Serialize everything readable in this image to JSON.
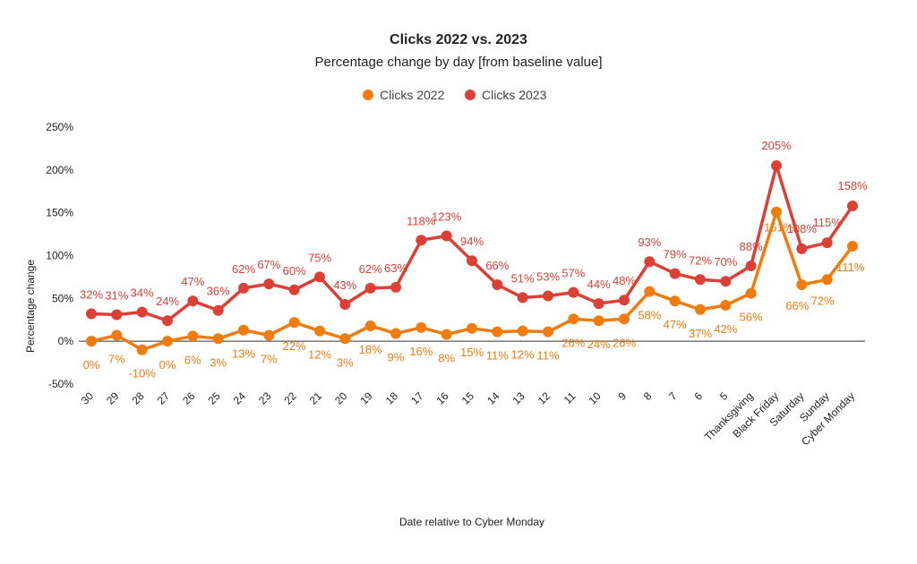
{
  "chart_data": {
    "type": "line",
    "title": "Clicks 2022 vs. 2023",
    "subtitle": "Percentage change by day [from baseline value]",
    "xlabel": "Date relative to Cyber Monday",
    "ylabel": "Percentage change",
    "ylim": [
      -50,
      250
    ],
    "yticks": [
      -50,
      0,
      50,
      100,
      150,
      200,
      250
    ],
    "ytick_labels": [
      "-50%",
      "0%",
      "50%",
      "100%",
      "150%",
      "200%",
      "250%"
    ],
    "legend_position": "top-center",
    "categories": [
      "30",
      "29",
      "28",
      "27",
      "26",
      "25",
      "24",
      "23",
      "22",
      "21",
      "20",
      "19",
      "18",
      "17",
      "16",
      "15",
      "14",
      "13",
      "12",
      "11",
      "10",
      "9",
      "8",
      "7",
      "6",
      "5",
      "Thanksgiving",
      "Black Friday",
      "Saturday",
      "Sunday",
      "Cyber Monday"
    ],
    "series": [
      {
        "name": "Clicks 2022",
        "color": "#f07c0f",
        "values": [
          0,
          7,
          -10,
          0,
          6,
          3,
          13,
          7,
          22,
          12,
          3,
          18,
          9,
          16,
          8,
          15,
          11,
          12,
          11,
          26,
          24,
          26,
          58,
          47,
          37,
          42,
          56,
          151,
          66,
          72,
          111
        ],
        "labels": [
          "0%",
          "7%",
          "-10%",
          "0%",
          "6%",
          "3%",
          "13%",
          "7%",
          "22%",
          "12%",
          "3%",
          "18%",
          "9%",
          "16%",
          "8%",
          "15%",
          "11%",
          "12%",
          "11%",
          "26%",
          "24%",
          "26%",
          "58%",
          "47%",
          "37%",
          "42%",
          "56%",
          "151%",
          "66%",
          "72%",
          "111%"
        ]
      },
      {
        "name": "Clicks 2023",
        "color": "#dc3f35",
        "values": [
          32,
          31,
          34,
          24,
          47,
          36,
          62,
          67,
          60,
          75,
          43,
          62,
          63,
          118,
          123,
          94,
          66,
          51,
          53,
          57,
          44,
          48,
          93,
          79,
          72,
          70,
          88,
          205,
          108,
          115,
          158
        ],
        "labels": [
          "32%",
          "31%",
          "34%",
          "24%",
          "47%",
          "36%",
          "62%",
          "67%",
          "60%",
          "75%",
          "43%",
          "62%",
          "63%",
          "118%",
          "123%",
          "94%",
          "66%",
          "51%",
          "53%",
          "57%",
          "44%",
          "48%",
          "93%",
          "79%",
          "72%",
          "70%",
          "88%",
          "205%",
          "108%",
          "115%",
          "158%"
        ]
      }
    ]
  }
}
